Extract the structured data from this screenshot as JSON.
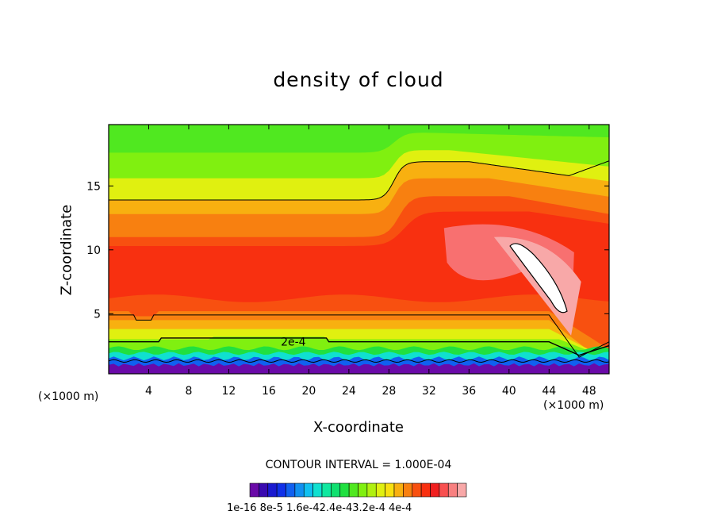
{
  "chart_data": {
    "type": "heatmap",
    "title": "density of cloud",
    "xlabel": "X-coordinate",
    "ylabel": "Z-coordinate",
    "x_unit_left": "(×1000 m)",
    "x_unit_right": "(×1000 m)",
    "x_ticks": [
      4,
      8,
      12,
      16,
      20,
      24,
      28,
      32,
      36,
      40,
      44,
      48
    ],
    "y_ticks": [
      5,
      10,
      15
    ],
    "xlim": [
      0,
      50
    ],
    "ylim": [
      0.3,
      19.8
    ],
    "contour_interval_text": "CONTOUR INTERVAL = 1.000E-04",
    "contour_label": "2e-4",
    "colorbar_labels": [
      "1e-16",
      "8e-5",
      "1.6e-4",
      "2.4e-4",
      "3.2e-4",
      "4e-4"
    ],
    "colorbar_label_text": "1e-16  8e-5  1.6e-42.4e-43.2e-4  4e-4",
    "colorbar_colors": [
      "#6a0aa8",
      "#3a0ab0",
      "#1a1ad0",
      "#1030e8",
      "#1060f0",
      "#1090f0",
      "#10c0f0",
      "#10e0d0",
      "#10e8a0",
      "#10e070",
      "#20e040",
      "#50e820",
      "#80f010",
      "#b0f010",
      "#e0f010",
      "#f8e010",
      "#f8b010",
      "#f88010",
      "#f85010",
      "#f83010",
      "#f02020",
      "#f85050",
      "#f88080",
      "#f8a8a8"
    ],
    "fields_note": ""
  },
  "colors": {
    "top_green": "#40e810",
    "yellow": "#f0e810",
    "orange": "#f88010",
    "red": "#f82818",
    "pink": "#f87878",
    "white": "#ffffff",
    "ground": "#6a0aa8"
  }
}
